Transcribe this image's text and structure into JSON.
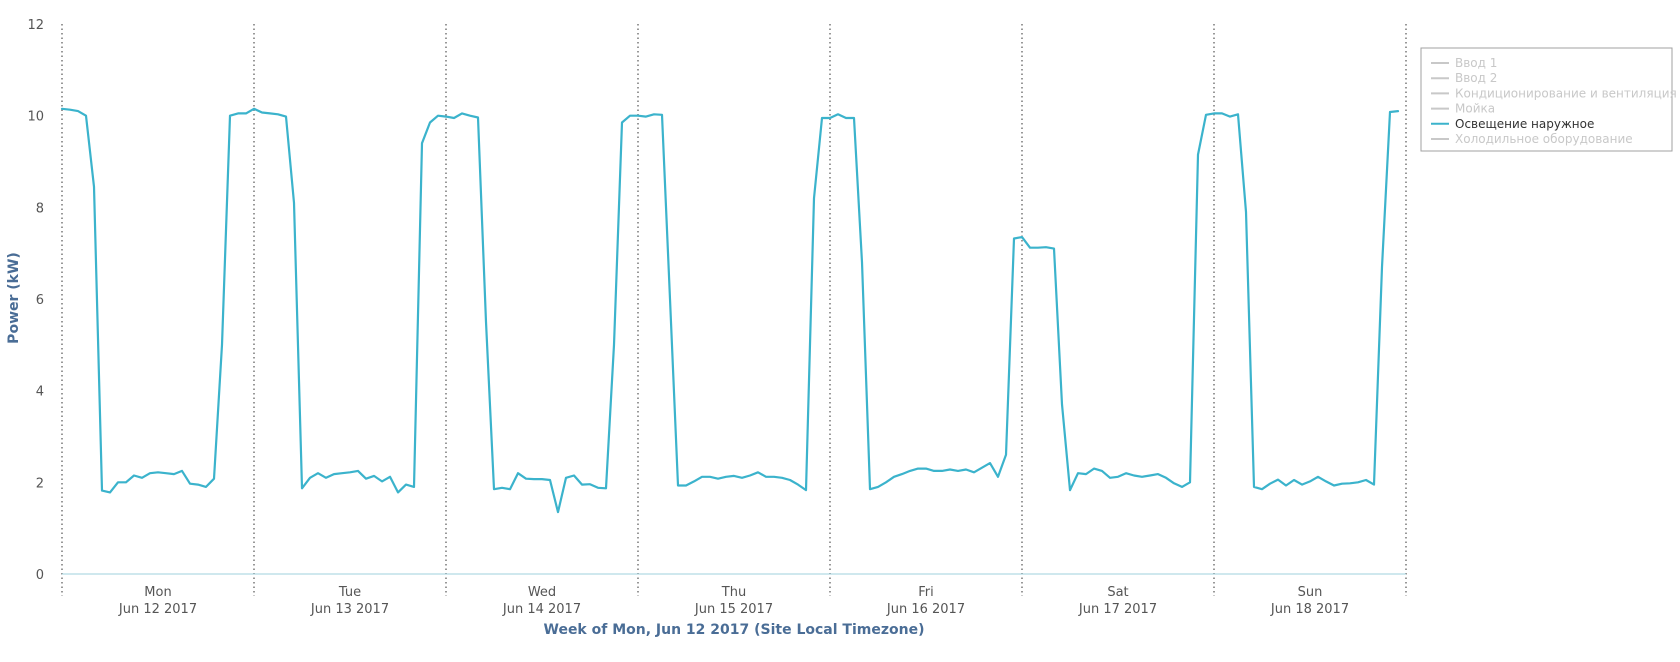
{
  "chart_data": {
    "type": "line",
    "xlabel": "Week of Mon, Jun 12 2017 (Site Local Timezone)",
    "ylabel": "Power (kW)",
    "ylim": [
      0,
      12
    ],
    "yticks": [
      "0",
      "2",
      "4",
      "6",
      "8",
      "10",
      "12"
    ],
    "x_unit": "hours",
    "xlim": [
      0,
      168
    ],
    "grid": "dotted vertical day separators",
    "legend_position": "top-right",
    "days": [
      {
        "day": "Mon",
        "date": "Jun 12 2017"
      },
      {
        "day": "Tue",
        "date": "Jun 13 2017"
      },
      {
        "day": "Wed",
        "date": "Jun 14 2017"
      },
      {
        "day": "Thu",
        "date": "Jun 15 2017"
      },
      {
        "day": "Fri",
        "date": "Jun 16 2017"
      },
      {
        "day": "Sat",
        "date": "Jun 17 2017"
      },
      {
        "day": "Sun",
        "date": "Jun 18 2017"
      }
    ],
    "legend": [
      {
        "name": "Ввод 1",
        "active": false,
        "color": "#c8c8c8"
      },
      {
        "name": "Ввод 2",
        "active": false,
        "color": "#c8c8c8"
      },
      {
        "name": "Кондиционирование и вентиляция",
        "active": false,
        "color": "#c8c8c8"
      },
      {
        "name": "Мойка",
        "active": false,
        "color": "#c8c8c8"
      },
      {
        "name": "Освещение наружное",
        "active": true,
        "color": "#3bb3cc"
      },
      {
        "name": "Холодильное оборудование",
        "active": false,
        "color": "#c8c8c8"
      }
    ],
    "series": [
      {
        "name": "Освещение наружное",
        "color": "#3bb3cc",
        "points": [
          [
            0,
            10.15
          ],
          [
            1,
            10.13
          ],
          [
            2,
            10.1
          ],
          [
            3,
            10.0
          ],
          [
            4,
            8.45
          ],
          [
            5,
            1.82
          ],
          [
            6,
            1.78
          ],
          [
            7,
            2.0
          ],
          [
            8,
            2.0
          ],
          [
            9,
            2.15
          ],
          [
            10,
            2.1
          ],
          [
            11,
            2.2
          ],
          [
            12,
            2.22
          ],
          [
            13,
            2.2
          ],
          [
            14,
            2.18
          ],
          [
            15,
            2.25
          ],
          [
            16,
            1.97
          ],
          [
            17,
            1.95
          ],
          [
            18,
            1.9
          ],
          [
            19,
            2.08
          ],
          [
            20,
            5.0
          ],
          [
            21,
            10.0
          ],
          [
            22,
            10.05
          ],
          [
            23,
            10.05
          ],
          [
            24,
            10.15
          ],
          [
            25,
            10.07
          ],
          [
            26,
            10.05
          ],
          [
            27,
            10.03
          ],
          [
            28,
            9.98
          ],
          [
            29,
            8.1
          ],
          [
            30,
            1.87
          ],
          [
            31,
            2.1
          ],
          [
            32,
            2.2
          ],
          [
            33,
            2.1
          ],
          [
            34,
            2.18
          ],
          [
            35,
            2.2
          ],
          [
            36,
            2.22
          ],
          [
            37,
            2.25
          ],
          [
            38,
            2.08
          ],
          [
            39,
            2.14
          ],
          [
            40,
            2.02
          ],
          [
            41,
            2.12
          ],
          [
            42,
            1.78
          ],
          [
            43,
            1.95
          ],
          [
            44,
            1.9
          ],
          [
            45,
            9.4
          ],
          [
            46,
            9.85
          ],
          [
            47,
            10.0
          ],
          [
            48,
            9.98
          ],
          [
            49,
            9.95
          ],
          [
            50,
            10.05
          ],
          [
            51,
            10.0
          ],
          [
            52,
            9.96
          ],
          [
            53,
            5.5
          ],
          [
            54,
            1.85
          ],
          [
            55,
            1.88
          ],
          [
            56,
            1.85
          ],
          [
            57,
            2.2
          ],
          [
            58,
            2.08
          ],
          [
            59,
            2.07
          ],
          [
            60,
            2.07
          ],
          [
            61,
            2.05
          ],
          [
            62,
            1.35
          ],
          [
            63,
            2.1
          ],
          [
            64,
            2.15
          ],
          [
            65,
            1.95
          ],
          [
            66,
            1.96
          ],
          [
            67,
            1.88
          ],
          [
            68,
            1.87
          ],
          [
            69,
            5.0
          ],
          [
            70,
            9.85
          ],
          [
            71,
            10.0
          ],
          [
            72,
            10.0
          ],
          [
            73,
            9.98
          ],
          [
            74,
            10.03
          ],
          [
            75,
            10.02
          ],
          [
            76,
            6.0
          ],
          [
            77,
            1.93
          ],
          [
            78,
            1.93
          ],
          [
            79,
            2.02
          ],
          [
            80,
            2.12
          ],
          [
            81,
            2.12
          ],
          [
            82,
            2.08
          ],
          [
            83,
            2.12
          ],
          [
            84,
            2.14
          ],
          [
            85,
            2.1
          ],
          [
            86,
            2.15
          ],
          [
            87,
            2.22
          ],
          [
            88,
            2.12
          ],
          [
            89,
            2.12
          ],
          [
            90,
            2.1
          ],
          [
            91,
            2.05
          ],
          [
            92,
            1.95
          ],
          [
            93,
            1.83
          ],
          [
            94,
            8.2
          ],
          [
            95,
            9.95
          ],
          [
            96,
            9.95
          ],
          [
            97,
            10.03
          ],
          [
            98,
            9.95
          ],
          [
            99,
            9.95
          ],
          [
            100,
            6.8
          ],
          [
            101,
            1.85
          ],
          [
            102,
            1.9
          ],
          [
            103,
            2.0
          ],
          [
            104,
            2.12
          ],
          [
            105,
            2.18
          ],
          [
            106,
            2.25
          ],
          [
            107,
            2.3
          ],
          [
            108,
            2.3
          ],
          [
            109,
            2.25
          ],
          [
            110,
            2.25
          ],
          [
            111,
            2.28
          ],
          [
            112,
            2.25
          ],
          [
            113,
            2.28
          ],
          [
            114,
            2.22
          ],
          [
            115,
            2.32
          ],
          [
            116,
            2.42
          ],
          [
            117,
            2.12
          ],
          [
            118,
            2.6
          ],
          [
            119,
            7.32
          ],
          [
            120,
            7.35
          ],
          [
            121,
            7.12
          ],
          [
            122,
            7.12
          ],
          [
            123,
            7.13
          ],
          [
            124,
            7.1
          ],
          [
            125,
            3.7
          ],
          [
            126,
            1.83
          ],
          [
            127,
            2.2
          ],
          [
            128,
            2.18
          ],
          [
            129,
            2.3
          ],
          [
            130,
            2.25
          ],
          [
            131,
            2.1
          ],
          [
            132,
            2.12
          ],
          [
            133,
            2.2
          ],
          [
            134,
            2.15
          ],
          [
            135,
            2.12
          ],
          [
            136,
            2.15
          ],
          [
            137,
            2.18
          ],
          [
            138,
            2.1
          ],
          [
            139,
            1.98
          ],
          [
            140,
            1.9
          ],
          [
            141,
            2.0
          ],
          [
            142,
            9.15
          ],
          [
            143,
            10.02
          ],
          [
            144,
            10.05
          ],
          [
            145,
            10.05
          ],
          [
            146,
            9.98
          ],
          [
            147,
            10.03
          ],
          [
            148,
            7.9
          ],
          [
            149,
            1.9
          ],
          [
            150,
            1.85
          ],
          [
            151,
            1.97
          ],
          [
            152,
            2.06
          ],
          [
            153,
            1.93
          ],
          [
            154,
            2.05
          ],
          [
            155,
            1.95
          ],
          [
            156,
            2.02
          ],
          [
            157,
            2.12
          ],
          [
            158,
            2.02
          ],
          [
            159,
            1.93
          ],
          [
            160,
            1.97
          ],
          [
            161,
            1.98
          ],
          [
            162,
            2.0
          ],
          [
            163,
            2.05
          ],
          [
            164,
            1.95
          ],
          [
            165,
            6.7
          ],
          [
            166,
            10.08
          ],
          [
            167,
            10.1
          ]
        ]
      }
    ]
  }
}
